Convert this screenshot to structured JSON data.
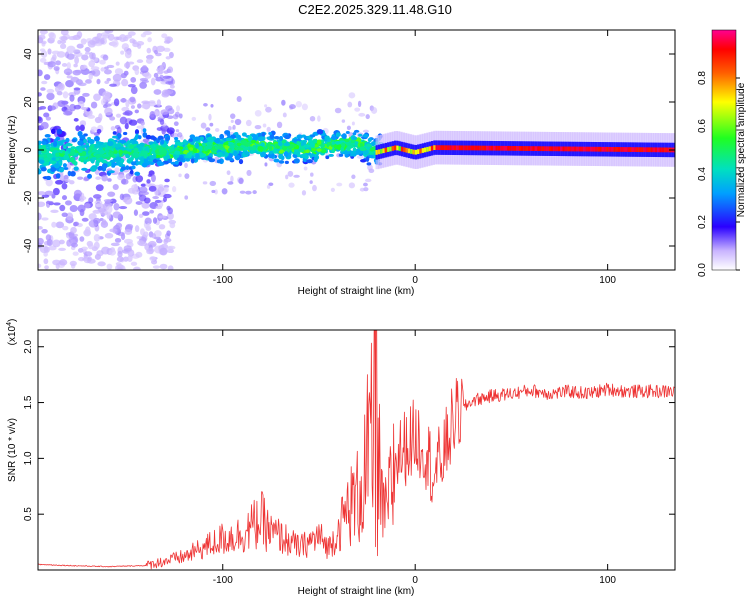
{
  "title": "C2E2.2025.329.11.48.G10",
  "chart_data": [
    {
      "type": "heatmap",
      "title": "C2E2.2025.329.11.48.G10",
      "xlabel": "Height of straight line (km)",
      "ylabel": "Frequency (Hz)",
      "xlim": [
        -196,
        135
      ],
      "ylim": [
        -50,
        50
      ],
      "xticks": [
        -100,
        0,
        100
      ],
      "yticks": [
        -40,
        -20,
        0,
        20,
        40
      ],
      "colorbar": {
        "label": "Normalized spectral amplitude",
        "range": [
          0,
          1
        ],
        "ticks": [
          0.0,
          0.2,
          0.4,
          0.6,
          0.8
        ]
      },
      "ridge": [
        {
          "x": -190,
          "y": -2
        },
        {
          "x": -150,
          "y": -1
        },
        {
          "x": -120,
          "y": 0
        },
        {
          "x": -90,
          "y": 2
        },
        {
          "x": -60,
          "y": 1
        },
        {
          "x": -30,
          "y": 3
        },
        {
          "x": -20,
          "y": -1
        },
        {
          "x": -10,
          "y": 1
        },
        {
          "x": 0,
          "y": -1
        },
        {
          "x": 10,
          "y": 1
        },
        {
          "x": 135,
          "y": 0
        }
      ]
    },
    {
      "type": "line",
      "xlabel": "Height of straight line (km)",
      "ylabel": "SNR (10 * v/v)",
      "y_multiplier": "(x10",
      "y_multiplier_exp": "4",
      "y_multiplier_close": ")",
      "xlim": [
        -196,
        135
      ],
      "ylim": [
        0,
        2.15
      ],
      "xticks": [
        -100,
        0,
        100
      ],
      "yticks": [
        0.5,
        1.0,
        1.5,
        2.0
      ],
      "series": [
        {
          "name": "SNR",
          "color": "#ee3333",
          "x": [
            -196,
            -180,
            -160,
            -140,
            -130,
            -120,
            -110,
            -100,
            -90,
            -80,
            -75,
            -70,
            -60,
            -50,
            -45,
            -40,
            -35,
            -30,
            -25,
            -22,
            -20,
            -18,
            -15,
            -12,
            -10,
            -5,
            0,
            5,
            10,
            15,
            20,
            25,
            30,
            40,
            50,
            60,
            70,
            80,
            90,
            100,
            110,
            120,
            135
          ],
          "y": [
            0.05,
            0.04,
            0.03,
            0.04,
            0.08,
            0.12,
            0.2,
            0.28,
            0.32,
            0.45,
            0.33,
            0.3,
            0.2,
            0.3,
            0.2,
            0.35,
            0.55,
            0.65,
            0.95,
            1.1,
            2.0,
            0.6,
            0.5,
            0.8,
            1.0,
            1.1,
            1.2,
            1.1,
            0.85,
            1.05,
            1.35,
            1.45,
            1.52,
            1.56,
            1.58,
            1.61,
            1.58,
            1.6,
            1.58,
            1.62,
            1.6,
            1.6,
            1.6
          ]
        }
      ]
    }
  ]
}
